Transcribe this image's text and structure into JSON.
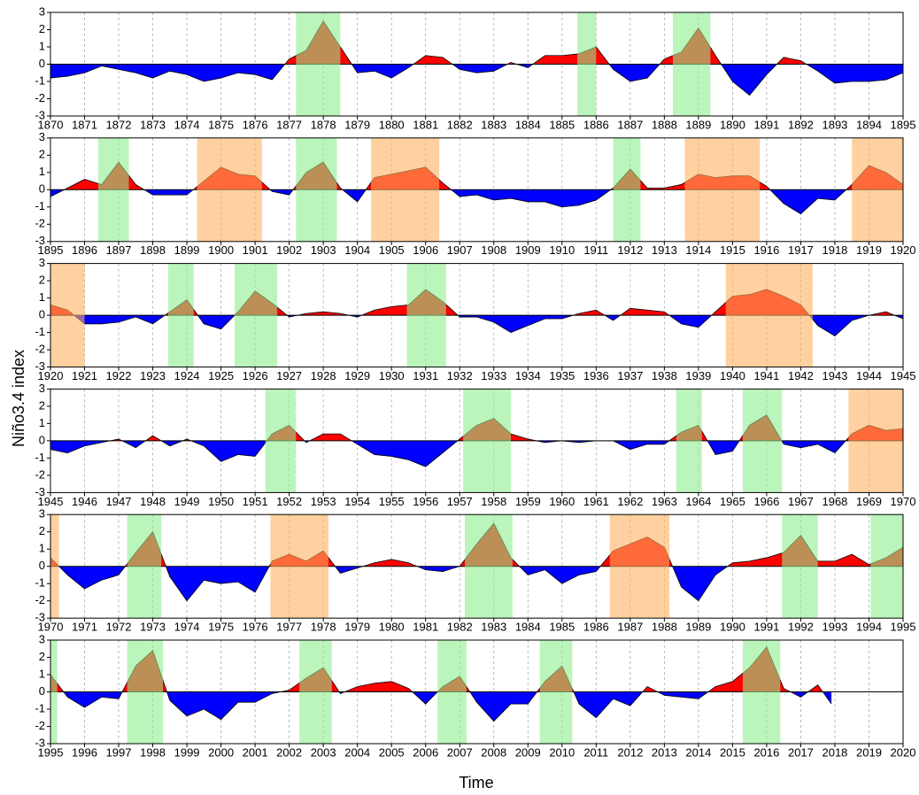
{
  "ylabel": "Niño3.4 index",
  "xlabel": "Time",
  "chart_data": [
    {
      "type": "area",
      "positive_color": "#ff0000",
      "negative_color": "#0000ff",
      "grid": true,
      "xlim": [
        1870,
        1895
      ],
      "ylim": [
        -3,
        3
      ],
      "yticks": [
        -3,
        -2,
        -1,
        0,
        1,
        2,
        3
      ],
      "xticks": [
        1870,
        1871,
        1872,
        1873,
        1874,
        1875,
        1876,
        1877,
        1878,
        1879,
        1880,
        1881,
        1882,
        1883,
        1884,
        1885,
        1886,
        1887,
        1888,
        1889,
        1890,
        1891,
        1892,
        1893,
        1894,
        1895
      ],
      "x": [
        1870,
        1870.5,
        1871,
        1871.5,
        1872,
        1872.5,
        1873,
        1873.5,
        1874,
        1874.5,
        1875,
        1875.5,
        1876,
        1876.5,
        1877,
        1877.5,
        1878,
        1878.5,
        1879,
        1879.5,
        1880,
        1880.5,
        1881,
        1881.5,
        1882,
        1882.5,
        1883,
        1883.5,
        1884,
        1884.5,
        1885,
        1885.5,
        1886,
        1886.5,
        1887,
        1887.5,
        1888,
        1888.5,
        1889,
        1889.5,
        1890,
        1890.5,
        1891,
        1891.5,
        1892,
        1892.5,
        1893,
        1893.5,
        1894,
        1894.5,
        1895
      ],
      "values": [
        -0.8,
        -0.7,
        -0.5,
        -0.1,
        -0.3,
        -0.5,
        -0.8,
        -0.4,
        -0.6,
        -1.0,
        -0.8,
        -0.5,
        -0.6,
        -0.9,
        0.3,
        0.8,
        2.5,
        1.0,
        -0.5,
        -0.4,
        -0.8,
        -0.2,
        0.5,
        0.4,
        -0.3,
        -0.5,
        -0.4,
        0.1,
        -0.2,
        0.5,
        0.5,
        0.6,
        1.0,
        -0.3,
        -1.0,
        -0.8,
        0.3,
        0.7,
        2.1,
        0.5,
        -1.0,
        -1.8,
        -0.6,
        0.4,
        0.2,
        -0.4,
        -1.1,
        -1.0,
        -1.0,
        -0.9,
        -0.5
      ],
      "spans": [
        {
          "start": 1877.2,
          "end": 1878.5,
          "color": "#90ee90"
        },
        {
          "start": 1885.45,
          "end": 1886.0,
          "color": "#90ee90"
        },
        {
          "start": 1888.25,
          "end": 1889.35,
          "color": "#90ee90"
        }
      ]
    },
    {
      "type": "area",
      "positive_color": "#ff0000",
      "negative_color": "#0000ff",
      "grid": true,
      "xlim": [
        1895,
        1920
      ],
      "ylim": [
        -3,
        3
      ],
      "yticks": [
        -3,
        -2,
        -1,
        0,
        1,
        2,
        3
      ],
      "xticks": [
        1895,
        1896,
        1897,
        1898,
        1899,
        1900,
        1901,
        1902,
        1903,
        1904,
        1905,
        1906,
        1907,
        1908,
        1909,
        1910,
        1911,
        1912,
        1913,
        1914,
        1915,
        1916,
        1917,
        1918,
        1919,
        1920
      ],
      "x": [
        1895,
        1895.5,
        1896,
        1896.5,
        1897,
        1897.5,
        1898,
        1898.5,
        1899,
        1899.5,
        1900,
        1900.5,
        1901,
        1901.5,
        1902,
        1902.5,
        1903,
        1903.5,
        1904,
        1904.5,
        1905,
        1905.5,
        1906,
        1906.5,
        1907,
        1907.5,
        1908,
        1908.5,
        1909,
        1909.5,
        1910,
        1910.5,
        1911,
        1911.5,
        1912,
        1912.5,
        1913,
        1913.5,
        1914,
        1914.5,
        1915,
        1915.5,
        1916,
        1916.5,
        1917,
        1917.5,
        1918,
        1918.5,
        1919,
        1919.5,
        1920
      ],
      "values": [
        -0.4,
        0.1,
        0.6,
        0.3,
        1.6,
        0.3,
        -0.3,
        -0.3,
        -0.3,
        0.5,
        1.3,
        0.9,
        0.8,
        -0.1,
        -0.3,
        1.0,
        1.6,
        0.1,
        -0.7,
        0.7,
        0.9,
        1.1,
        1.3,
        0.4,
        -0.4,
        -0.3,
        -0.6,
        -0.5,
        -0.7,
        -0.7,
        -1.0,
        -0.9,
        -0.6,
        0.1,
        1.2,
        0.1,
        0.1,
        0.3,
        0.9,
        0.7,
        0.8,
        0.8,
        0.2,
        -0.8,
        -1.4,
        -0.5,
        -0.6,
        0.3,
        1.4,
        1.0,
        0.3
      ],
      "spans": [
        {
          "start": 1896.4,
          "end": 1897.3,
          "color": "#90ee90"
        },
        {
          "start": 1899.3,
          "end": 1901.2,
          "color": "#ffb060"
        },
        {
          "start": 1902.2,
          "end": 1903.4,
          "color": "#90ee90"
        },
        {
          "start": 1904.4,
          "end": 1906.4,
          "color": "#ffb060"
        },
        {
          "start": 1911.5,
          "end": 1912.3,
          "color": "#90ee90"
        },
        {
          "start": 1913.6,
          "end": 1915.8,
          "color": "#ffb060"
        },
        {
          "start": 1918.5,
          "end": 1920,
          "color": "#ffb060"
        }
      ]
    },
    {
      "type": "area",
      "positive_color": "#ff0000",
      "negative_color": "#0000ff",
      "grid": true,
      "xlim": [
        1920,
        1945
      ],
      "ylim": [
        -3,
        3
      ],
      "yticks": [
        -3,
        -2,
        -1,
        0,
        1,
        2,
        3
      ],
      "xticks": [
        1920,
        1921,
        1922,
        1923,
        1924,
        1925,
        1926,
        1927,
        1928,
        1929,
        1930,
        1931,
        1932,
        1933,
        1934,
        1935,
        1936,
        1937,
        1938,
        1939,
        1940,
        1941,
        1942,
        1943,
        1944,
        1945
      ],
      "x": [
        1920,
        1920.5,
        1921,
        1921.5,
        1922,
        1922.5,
        1923,
        1923.5,
        1924,
        1924.5,
        1925,
        1925.5,
        1926,
        1926.5,
        1927,
        1927.5,
        1928,
        1928.5,
        1929,
        1929.5,
        1930,
        1930.5,
        1931,
        1931.5,
        1932,
        1932.5,
        1933,
        1933.5,
        1934,
        1934.5,
        1935,
        1935.5,
        1936,
        1936.5,
        1937,
        1937.5,
        1938,
        1938.5,
        1939,
        1939.5,
        1940,
        1940.5,
        1941,
        1941.5,
        1942,
        1942.5,
        1943,
        1943.5,
        1944,
        1944.5,
        1945
      ],
      "values": [
        0.6,
        0.3,
        -0.5,
        -0.5,
        -0.4,
        -0.1,
        -0.5,
        0.2,
        0.9,
        -0.5,
        -0.8,
        0.2,
        1.4,
        0.7,
        -0.1,
        0.1,
        0.2,
        0.1,
        -0.1,
        0.3,
        0.5,
        0.6,
        1.5,
        0.8,
        -0.1,
        -0.1,
        -0.4,
        -1.0,
        -0.6,
        -0.2,
        -0.2,
        0.1,
        0.3,
        -0.3,
        0.4,
        0.3,
        0.2,
        -0.5,
        -0.7,
        0.2,
        1.1,
        1.2,
        1.5,
        1.1,
        0.6,
        -0.6,
        -1.2,
        -0.3,
        0.0,
        0.2,
        -0.2
      ],
      "spans": [
        {
          "start": 1920,
          "end": 1921.0,
          "color": "#ffb060"
        },
        {
          "start": 1923.45,
          "end": 1924.2,
          "color": "#90ee90"
        },
        {
          "start": 1925.4,
          "end": 1926.65,
          "color": "#90ee90"
        },
        {
          "start": 1930.45,
          "end": 1931.6,
          "color": "#90ee90"
        },
        {
          "start": 1939.8,
          "end": 1942.35,
          "color": "#ffb060"
        }
      ]
    },
    {
      "type": "area",
      "positive_color": "#ff0000",
      "negative_color": "#0000ff",
      "grid": true,
      "xlim": [
        1945,
        1970
      ],
      "ylim": [
        -3,
        3
      ],
      "yticks": [
        -3,
        -2,
        -1,
        0,
        1,
        2,
        3
      ],
      "xticks": [
        1945,
        1946,
        1947,
        1948,
        1949,
        1950,
        1951,
        1952,
        1953,
        1954,
        1955,
        1956,
        1957,
        1958,
        1959,
        1960,
        1961,
        1962,
        1963,
        1964,
        1965,
        1966,
        1967,
        1968,
        1969,
        1970
      ],
      "x": [
        1945,
        1945.5,
        1946,
        1946.5,
        1947,
        1947.5,
        1948,
        1948.5,
        1949,
        1949.5,
        1950,
        1950.5,
        1951,
        1951.5,
        1952,
        1952.5,
        1953,
        1953.5,
        1954,
        1954.5,
        1955,
        1955.5,
        1956,
        1956.5,
        1957,
        1957.5,
        1958,
        1958.5,
        1959,
        1959.5,
        1960,
        1960.5,
        1961,
        1961.5,
        1962,
        1962.5,
        1963,
        1963.5,
        1964,
        1964.5,
        1965,
        1965.5,
        1966,
        1966.5,
        1967,
        1967.5,
        1968,
        1968.5,
        1969,
        1969.5,
        1970
      ],
      "values": [
        -0.5,
        -0.7,
        -0.3,
        -0.1,
        0.1,
        -0.4,
        0.3,
        -0.3,
        0.1,
        -0.3,
        -1.2,
        -0.8,
        -0.9,
        0.4,
        0.9,
        -0.1,
        0.4,
        0.4,
        -0.2,
        -0.8,
        -0.9,
        -1.1,
        -1.5,
        -0.7,
        0.1,
        0.9,
        1.3,
        0.4,
        0.1,
        -0.1,
        0.0,
        -0.1,
        0.0,
        0.0,
        -0.5,
        -0.2,
        -0.2,
        0.5,
        0.9,
        -0.8,
        -0.6,
        0.9,
        1.5,
        -0.2,
        -0.4,
        -0.2,
        -0.7,
        0.4,
        0.9,
        0.6,
        0.7
      ],
      "spans": [
        {
          "start": 1951.3,
          "end": 1952.2,
          "color": "#90ee90"
        },
        {
          "start": 1957.1,
          "end": 1958.5,
          "color": "#90ee90"
        },
        {
          "start": 1963.35,
          "end": 1964.1,
          "color": "#90ee90"
        },
        {
          "start": 1965.3,
          "end": 1966.45,
          "color": "#90ee90"
        },
        {
          "start": 1968.4,
          "end": 1970,
          "color": "#ffb060"
        }
      ]
    },
    {
      "type": "area",
      "positive_color": "#ff0000",
      "negative_color": "#0000ff",
      "grid": true,
      "xlim": [
        1970,
        1995
      ],
      "ylim": [
        -3,
        3
      ],
      "yticks": [
        -3,
        -2,
        -1,
        0,
        1,
        2,
        3
      ],
      "xticks": [
        1970,
        1971,
        1972,
        1973,
        1974,
        1975,
        1976,
        1977,
        1978,
        1979,
        1980,
        1981,
        1982,
        1983,
        1984,
        1985,
        1986,
        1987,
        1988,
        1989,
        1990,
        1991,
        1992,
        1993,
        1994,
        1995
      ],
      "x": [
        1970,
        1970.5,
        1971,
        1971.5,
        1972,
        1972.5,
        1973,
        1973.5,
        1974,
        1974.5,
        1975,
        1975.5,
        1976,
        1976.5,
        1977,
        1977.5,
        1978,
        1978.5,
        1979,
        1979.5,
        1980,
        1980.5,
        1981,
        1981.5,
        1982,
        1982.5,
        1983,
        1983.5,
        1984,
        1984.5,
        1985,
        1985.5,
        1986,
        1986.5,
        1987,
        1987.5,
        1988,
        1988.5,
        1989,
        1989.5,
        1990,
        1990.5,
        1991,
        1991.5,
        1992,
        1992.5,
        1993,
        1993.5,
        1994,
        1994.5,
        1995
      ],
      "values": [
        0.5,
        -0.5,
        -1.3,
        -0.8,
        -0.5,
        0.8,
        2.0,
        -0.6,
        -2.0,
        -0.8,
        -1.0,
        -0.9,
        -1.5,
        0.3,
        0.7,
        0.3,
        0.9,
        -0.4,
        -0.1,
        0.2,
        0.4,
        0.2,
        -0.2,
        -0.3,
        0.0,
        1.3,
        2.5,
        0.5,
        -0.5,
        -0.2,
        -1.0,
        -0.5,
        -0.3,
        0.9,
        1.3,
        1.7,
        1.1,
        -1.2,
        -2.0,
        -0.5,
        0.2,
        0.3,
        0.5,
        0.8,
        1.8,
        0.3,
        0.3,
        0.7,
        0.1,
        0.5,
        1.1
      ],
      "spans": [
        {
          "start": 1970,
          "end": 1970.25,
          "color": "#ffb060"
        },
        {
          "start": 1972.25,
          "end": 1973.25,
          "color": "#90ee90"
        },
        {
          "start": 1976.45,
          "end": 1978.15,
          "color": "#ffb060"
        },
        {
          "start": 1982.15,
          "end": 1983.55,
          "color": "#90ee90"
        },
        {
          "start": 1986.4,
          "end": 1988.15,
          "color": "#ffb060"
        },
        {
          "start": 1991.45,
          "end": 1992.5,
          "color": "#90ee90"
        },
        {
          "start": 1994.05,
          "end": 1995,
          "color": "#90ee90"
        }
      ]
    },
    {
      "type": "area",
      "positive_color": "#ff0000",
      "negative_color": "#0000ff",
      "grid": true,
      "xlim": [
        1995,
        2020
      ],
      "ylim": [
        -3,
        3
      ],
      "yticks": [
        -3,
        -2,
        -1,
        0,
        1,
        2,
        3
      ],
      "xticks": [
        1995,
        1996,
        1997,
        1998,
        1999,
        2000,
        2001,
        2002,
        2003,
        2004,
        2005,
        2006,
        2007,
        2008,
        2009,
        2010,
        2011,
        2012,
        2013,
        2014,
        2015,
        2016,
        2017,
        2018,
        2019,
        2020
      ],
      "x": [
        1995,
        1995.5,
        1996,
        1996.5,
        1997,
        1997.5,
        1998,
        1998.5,
        1999,
        1999.5,
        2000,
        2000.5,
        2001,
        2001.5,
        2002,
        2002.5,
        2003,
        2003.5,
        2004,
        2004.5,
        2005,
        2005.5,
        2006,
        2006.5,
        2007,
        2007.5,
        2008,
        2008.5,
        2009,
        2009.5,
        2010,
        2010.5,
        2011,
        2011.5,
        2012,
        2012.5,
        2013,
        2013.5,
        2014,
        2014.5,
        2015,
        2015.5,
        2016,
        2016.5,
        2017,
        2017.5,
        2017.9
      ],
      "values": [
        1.0,
        -0.3,
        -0.9,
        -0.3,
        -0.4,
        1.5,
        2.4,
        -0.5,
        -1.4,
        -1.0,
        -1.6,
        -0.6,
        -0.6,
        -0.1,
        0.1,
        0.8,
        1.4,
        -0.1,
        0.3,
        0.5,
        0.6,
        0.2,
        -0.7,
        0.3,
        0.9,
        -0.6,
        -1.7,
        -0.7,
        -0.7,
        0.6,
        1.5,
        -0.7,
        -1.5,
        -0.4,
        -0.8,
        0.3,
        -0.2,
        -0.3,
        -0.4,
        0.3,
        0.6,
        1.4,
        2.6,
        0.2,
        -0.3,
        0.4,
        -0.7
      ],
      "spans": [
        {
          "start": 1995,
          "end": 1995.2,
          "color": "#90ee90"
        },
        {
          "start": 1997.25,
          "end": 1998.3,
          "color": "#90ee90"
        },
        {
          "start": 2002.3,
          "end": 2003.25,
          "color": "#90ee90"
        },
        {
          "start": 2006.35,
          "end": 2007.2,
          "color": "#90ee90"
        },
        {
          "start": 2009.35,
          "end": 2010.3,
          "color": "#90ee90"
        },
        {
          "start": 2015.3,
          "end": 2016.4,
          "color": "#90ee90"
        }
      ]
    }
  ]
}
